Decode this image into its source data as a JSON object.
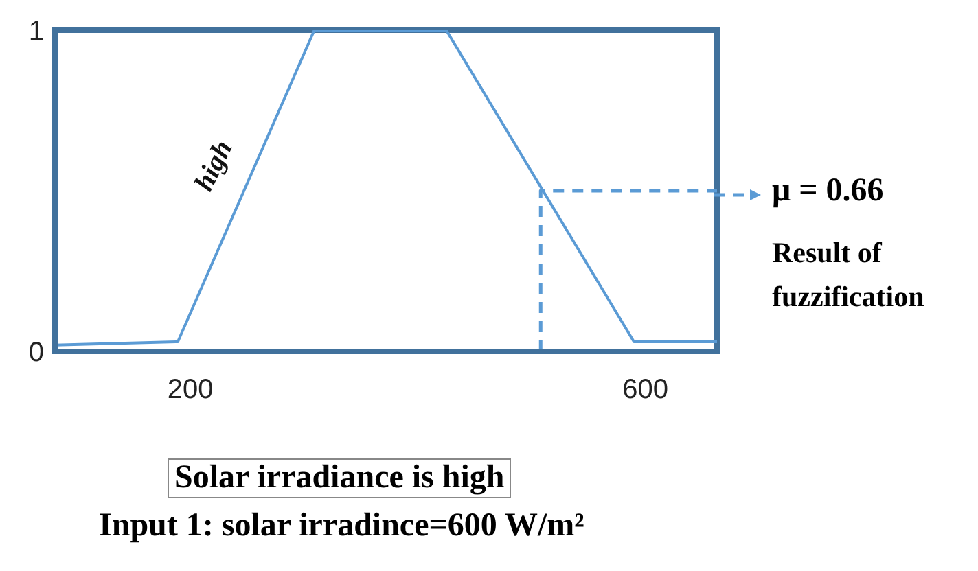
{
  "chart_data": {
    "type": "line",
    "xlabel": "Solar irradiance is high",
    "xlim": [
      81,
      663
    ],
    "xticks": [
      200,
      600
    ],
    "ylim": [
      0,
      1
    ],
    "yticks": [
      0,
      1
    ],
    "marker": "none",
    "series": [
      {
        "name": "high",
        "color": "#5b9bd5",
        "x": [
          81,
          189,
          309,
          425,
          590,
          663
        ],
        "values": [
          0.02,
          0.03,
          1,
          1,
          0.03,
          0.03
        ]
      },
      {
        "color": "#5b9bd5",
        "line_style": "dashed",
        "x": [
          508,
          508,
          663
        ],
        "values": [
          0,
          0.5,
          0.5
        ]
      }
    ],
    "annotations": [
      "μ = 0.66",
      "Result of fuzzification",
      "Input 1: solar irradince=600 W/m²"
    ]
  }
}
